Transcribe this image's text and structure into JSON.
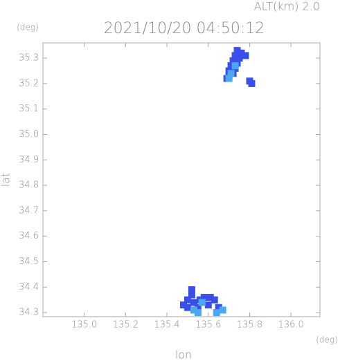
{
  "chart_data": {
    "type": "scatter",
    "header": "ALT(km) 2.0",
    "title": "2021/10/20 04:50:12",
    "y_unit": "(deg)",
    "x_unit": "(deg)",
    "x_label": "lon",
    "y_label": "lat",
    "xlim": [
      134.8,
      136.14
    ],
    "ylim": [
      34.284,
      35.36
    ],
    "xticks": [
      {
        "value": 135,
        "label": "135.0"
      },
      135.2,
      135.4,
      135.6,
      135.8,
      {
        "value": 136,
        "label": "136.0"
      }
    ],
    "yticks": [
      34.3,
      34.4,
      34.5,
      34.6,
      34.7,
      34.8,
      34.9,
      {
        "value": 35,
        "label": "35.0"
      },
      35.1,
      35.2,
      35.3
    ],
    "series": [
      {
        "color": "#3a4fe8",
        "x": [
          135.74,
          135.76,
          135.73,
          135.75,
          135.72,
          135.74,
          135.71,
          135.73,
          135.7,
          135.72,
          135.7,
          135.69,
          135.78,
          135.8,
          135.81,
          135.52,
          135.52,
          135.5,
          135.48,
          135.53,
          135.56,
          135.58,
          135.61,
          135.63,
          135.55,
          135.6,
          135.65,
          135.5
        ],
        "y": [
          35.33,
          35.32,
          35.31,
          35.3,
          35.29,
          35.28,
          35.27,
          35.26,
          35.25,
          35.24,
          35.23,
          35.22,
          35.31,
          35.21,
          35.2,
          34.39,
          34.37,
          34.35,
          34.33,
          34.34,
          34.35,
          34.36,
          34.36,
          34.35,
          34.32,
          34.33,
          34.32,
          34.32
        ]
      },
      {
        "color": "#4aa8f0",
        "x": [
          135.73,
          135.71,
          135.7,
          135.53,
          135.55,
          135.64,
          135.67,
          135.57
        ],
        "y": [
          35.27,
          35.24,
          35.22,
          34.31,
          34.3,
          34.3,
          34.31,
          34.34
        ]
      }
    ]
  }
}
